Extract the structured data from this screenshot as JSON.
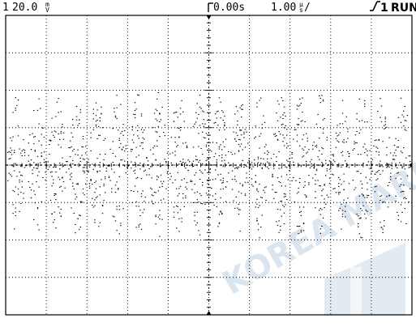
{
  "status_bar": {
    "channel": "1",
    "volts_per_div": "20.0",
    "volts_unit_top": "m",
    "volts_unit_bottom": "V",
    "time_offset": "0.00s",
    "time_per_div": "1.00",
    "time_unit_top": "μ",
    "time_unit_bottom": "s",
    "time_div_slash": "/",
    "trigger_source": "1",
    "run_state": "RUN"
  },
  "display": {
    "horizontal_divisions": 10,
    "vertical_divisions": 8,
    "trace_color": "#000000",
    "grid_color": "#000000"
  },
  "watermark": {
    "text": "KOREA MARITIME",
    "color": "#d7e3ee"
  }
}
